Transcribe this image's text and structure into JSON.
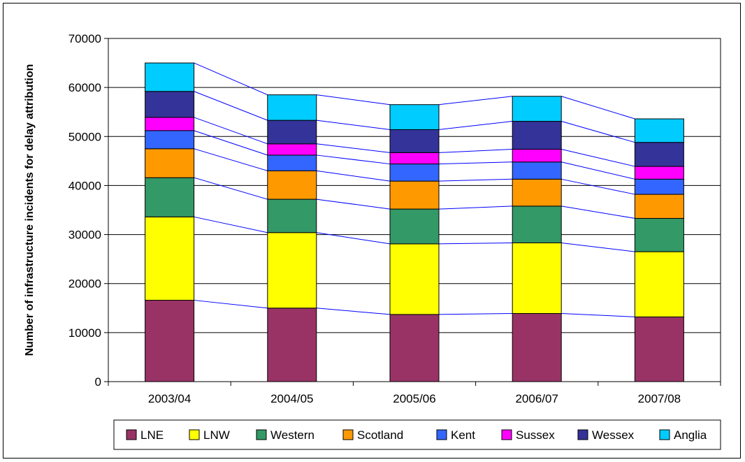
{
  "chart_data": {
    "type": "bar",
    "stacked": true,
    "ylabel": "Number of infrastructure incidents for delay attribution",
    "ylim": [
      0,
      70000
    ],
    "ytick_step": 10000,
    "yticks": [
      "0",
      "10000",
      "20000",
      "30000",
      "40000",
      "50000",
      "60000",
      "70000"
    ],
    "grid": true,
    "series_lines": true,
    "legend_position": "bottom",
    "categories": [
      "2003/04",
      "2004/05",
      "2005/06",
      "2006/07",
      "2007/08"
    ],
    "series": [
      {
        "name": "LNE",
        "color": "#993366",
        "values": [
          16600,
          15000,
          13700,
          13900,
          13200
        ]
      },
      {
        "name": "LNW",
        "color": "#FFFF00",
        "values": [
          17000,
          15400,
          14400,
          14400,
          13300
        ]
      },
      {
        "name": "Western",
        "color": "#339966",
        "values": [
          8000,
          6800,
          7100,
          7500,
          6800
        ]
      },
      {
        "name": "Scotland",
        "color": "#FF9900",
        "values": [
          5900,
          5800,
          5700,
          5500,
          4900
        ]
      },
      {
        "name": "Kent",
        "color": "#3366FF",
        "values": [
          3700,
          3200,
          3500,
          3500,
          3100
        ]
      },
      {
        "name": "Sussex",
        "color": "#FF00FF",
        "values": [
          2700,
          2300,
          2300,
          2600,
          2600
        ]
      },
      {
        "name": "Wessex",
        "color": "#333399",
        "values": [
          5300,
          4800,
          4700,
          5700,
          4900
        ]
      },
      {
        "name": "Anglia",
        "color": "#00CCFF",
        "values": [
          5800,
          5200,
          5100,
          5100,
          4800
        ]
      }
    ]
  }
}
